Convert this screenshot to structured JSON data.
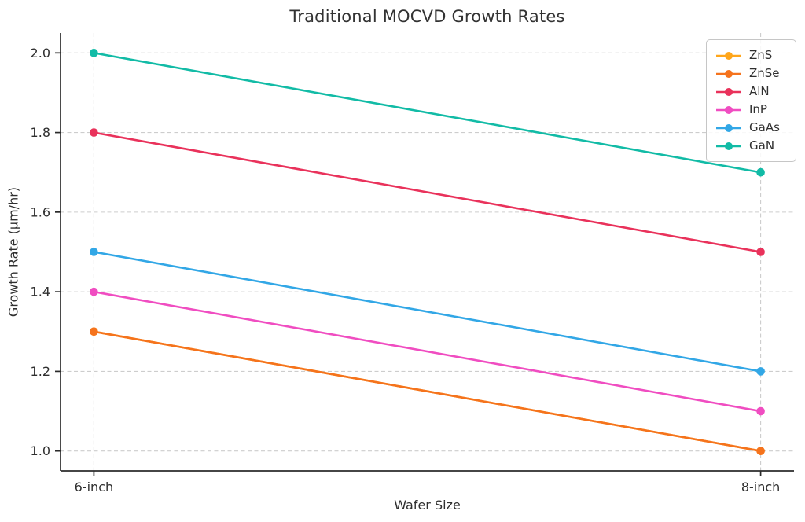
{
  "chart_data": {
    "type": "line",
    "title": "Traditional MOCVD Growth Rates",
    "xlabel": "Wafer Size",
    "ylabel": "Growth Rate (µm/hr)",
    "categories": [
      "6-inch",
      "8-inch"
    ],
    "series": [
      {
        "name": "ZnS",
        "color": "#FFA61B",
        "values": [
          1.3,
          1.0
        ],
        "hidden_under": "ZnSe"
      },
      {
        "name": "ZnSe",
        "color": "#F5731D",
        "values": [
          1.3,
          1.0
        ]
      },
      {
        "name": "AlN",
        "color": "#E9325B",
        "values": [
          1.8,
          1.5
        ]
      },
      {
        "name": "InP",
        "color": "#F04DC1",
        "values": [
          1.4,
          1.1
        ]
      },
      {
        "name": "GaAs",
        "color": "#32A7E6",
        "values": [
          1.5,
          1.2
        ]
      },
      {
        "name": "GaN",
        "color": "#12BBA6",
        "values": [
          2.0,
          1.7
        ]
      }
    ],
    "yticks": [
      "1.0",
      "1.2",
      "1.4",
      "1.6",
      "1.8",
      "2.0"
    ],
    "ylim": [
      0.95,
      2.05
    ],
    "grid": true,
    "grid_style": "dashed",
    "legend_position": "upper right",
    "axis_colors": {
      "spine": "#2b2b2b",
      "grid": "#cdcdcd",
      "text": "#2f2f2f"
    }
  }
}
